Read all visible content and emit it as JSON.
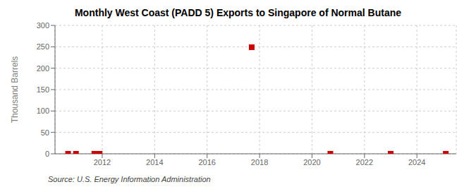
{
  "chart_data": {
    "type": "scatter",
    "title": "Monthly West Coast (PADD 5) Exports to Singapore of Normal Butane",
    "ylabel": "Thousand Barrels",
    "annotations": [
      "Source: U.S. Energy Information Administration"
    ],
    "x": [
      2010.7,
      2011.0,
      2011.7,
      2011.9,
      2017.7,
      2020.7,
      2023.0,
      2025.1
    ],
    "values": [
      0,
      0,
      0,
      0,
      249,
      0,
      0,
      0
    ],
    "color": "#cc0000",
    "marker": "square",
    "xlim": [
      2010.2,
      2025.5
    ],
    "xticks": [
      2012,
      2014,
      2016,
      2018,
      2020,
      2022,
      2024
    ],
    "ylim": [
      0,
      300
    ],
    "yticks": [
      0,
      50,
      100,
      150,
      200,
      250,
      300
    ],
    "grid": true
  }
}
